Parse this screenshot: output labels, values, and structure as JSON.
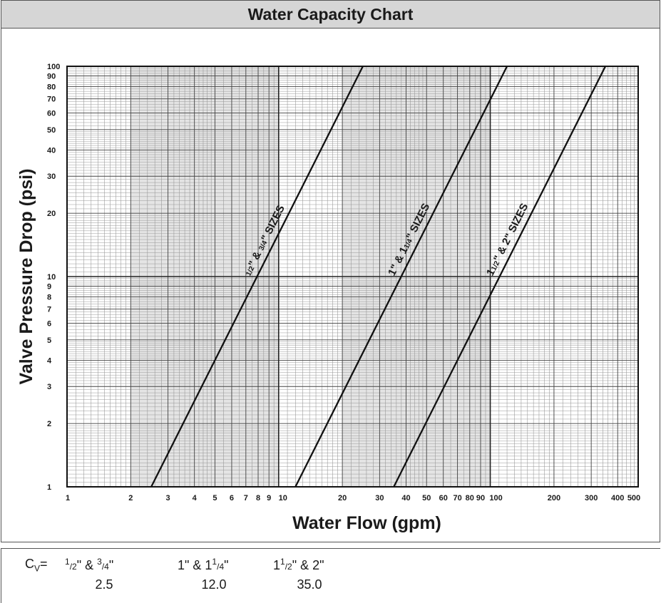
{
  "header": {
    "title": "Water Capacity Chart"
  },
  "chart_data": {
    "type": "line",
    "title": "Water Capacity Chart",
    "xlabel": "Water Flow (gpm)",
    "ylabel": "Valve Pressure Drop (psi)",
    "x_scale": "log",
    "y_scale": "log",
    "xlim": [
      1,
      500
    ],
    "ylim": [
      1,
      100
    ],
    "grid": true,
    "x_ticks": [
      "1",
      "2",
      "3",
      "4",
      "5",
      "6",
      "7",
      "8",
      "9",
      "10",
      "20",
      "30",
      "40",
      "50",
      "60",
      "70",
      "80",
      "90",
      "100",
      "200",
      "300",
      "400",
      "500"
    ],
    "x_tick_values": [
      1,
      2,
      3,
      4,
      5,
      6,
      7,
      8,
      9,
      10,
      20,
      30,
      40,
      50,
      60,
      70,
      80,
      90,
      100,
      200,
      300,
      400,
      500
    ],
    "y_ticks": [
      "1",
      "2",
      "3",
      "4",
      "5",
      "6",
      "7",
      "8",
      "9",
      "10",
      "20",
      "30",
      "40",
      "50",
      "60",
      "70",
      "80",
      "90",
      "100"
    ],
    "y_tick_values": [
      1,
      2,
      3,
      4,
      5,
      6,
      7,
      8,
      9,
      10,
      20,
      30,
      40,
      50,
      60,
      70,
      80,
      90,
      100
    ],
    "series": [
      {
        "name": "1/2\" & 3/4\" SIZES",
        "label_main": "\" & ",
        "label_tail": "\" SIZES",
        "cv": 2.5,
        "x": [
          2.5,
          25
        ],
        "y": [
          1,
          100
        ],
        "label_at_psi": 10
      },
      {
        "name": "1\" & 1 1/4\" SIZES",
        "label_main": "1\" & 1",
        "label_tail": "\" SIZES",
        "cv": 12.0,
        "x": [
          12.0,
          120
        ],
        "y": [
          1,
          100
        ],
        "label_at_psi": 10
      },
      {
        "name": "1 1/2\" & 2\" SIZES",
        "label_main": "1",
        "label_mid": "\" & 2\" SIZES",
        "cv": 35.0,
        "x": [
          35.0,
          350
        ],
        "y": [
          1,
          100
        ],
        "label_at_psi": 10
      }
    ]
  },
  "cv_table": {
    "prefix_main": "C",
    "prefix_sub": "V",
    "prefix_eq": "=",
    "sizes": [
      {
        "a": "1",
        "b": "2",
        "mid": "\" & ",
        "c": "3",
        "d": "4",
        "tail": "\""
      },
      {
        "lead": "1\" & 1",
        "c": "1",
        "d": "4",
        "tail": "\""
      },
      {
        "lead": "1",
        "c": "1",
        "d": "2",
        "tail": "\" & 2\""
      }
    ],
    "values": [
      "2.5",
      "12.0",
      "35.0"
    ]
  }
}
